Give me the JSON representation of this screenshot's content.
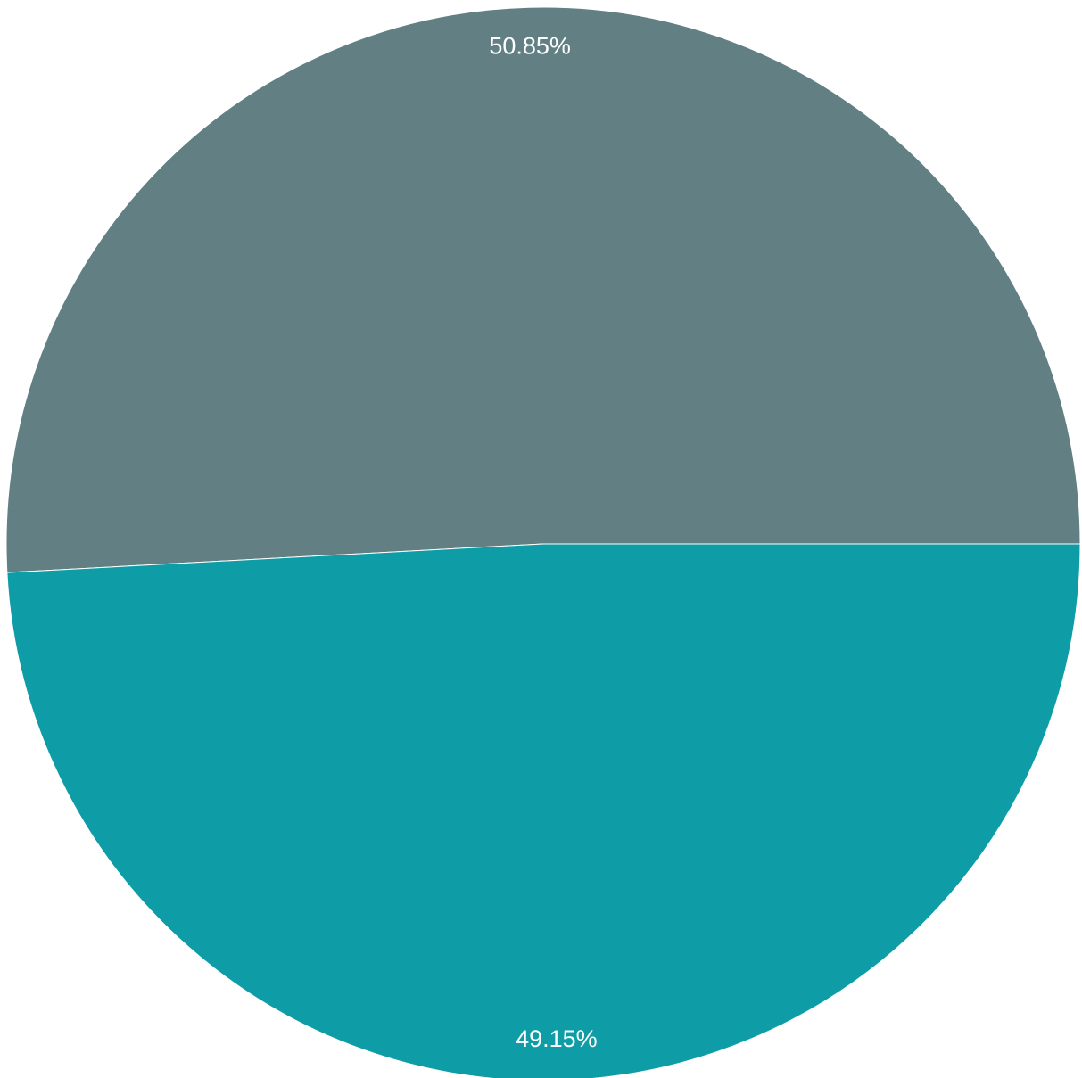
{
  "chart_data": {
    "type": "pie",
    "slices": [
      {
        "value": 50.85,
        "label": "50.85%",
        "color": "#628084"
      },
      {
        "value": 49.15,
        "label": "49.15%",
        "color": "#0e9da6"
      }
    ]
  }
}
